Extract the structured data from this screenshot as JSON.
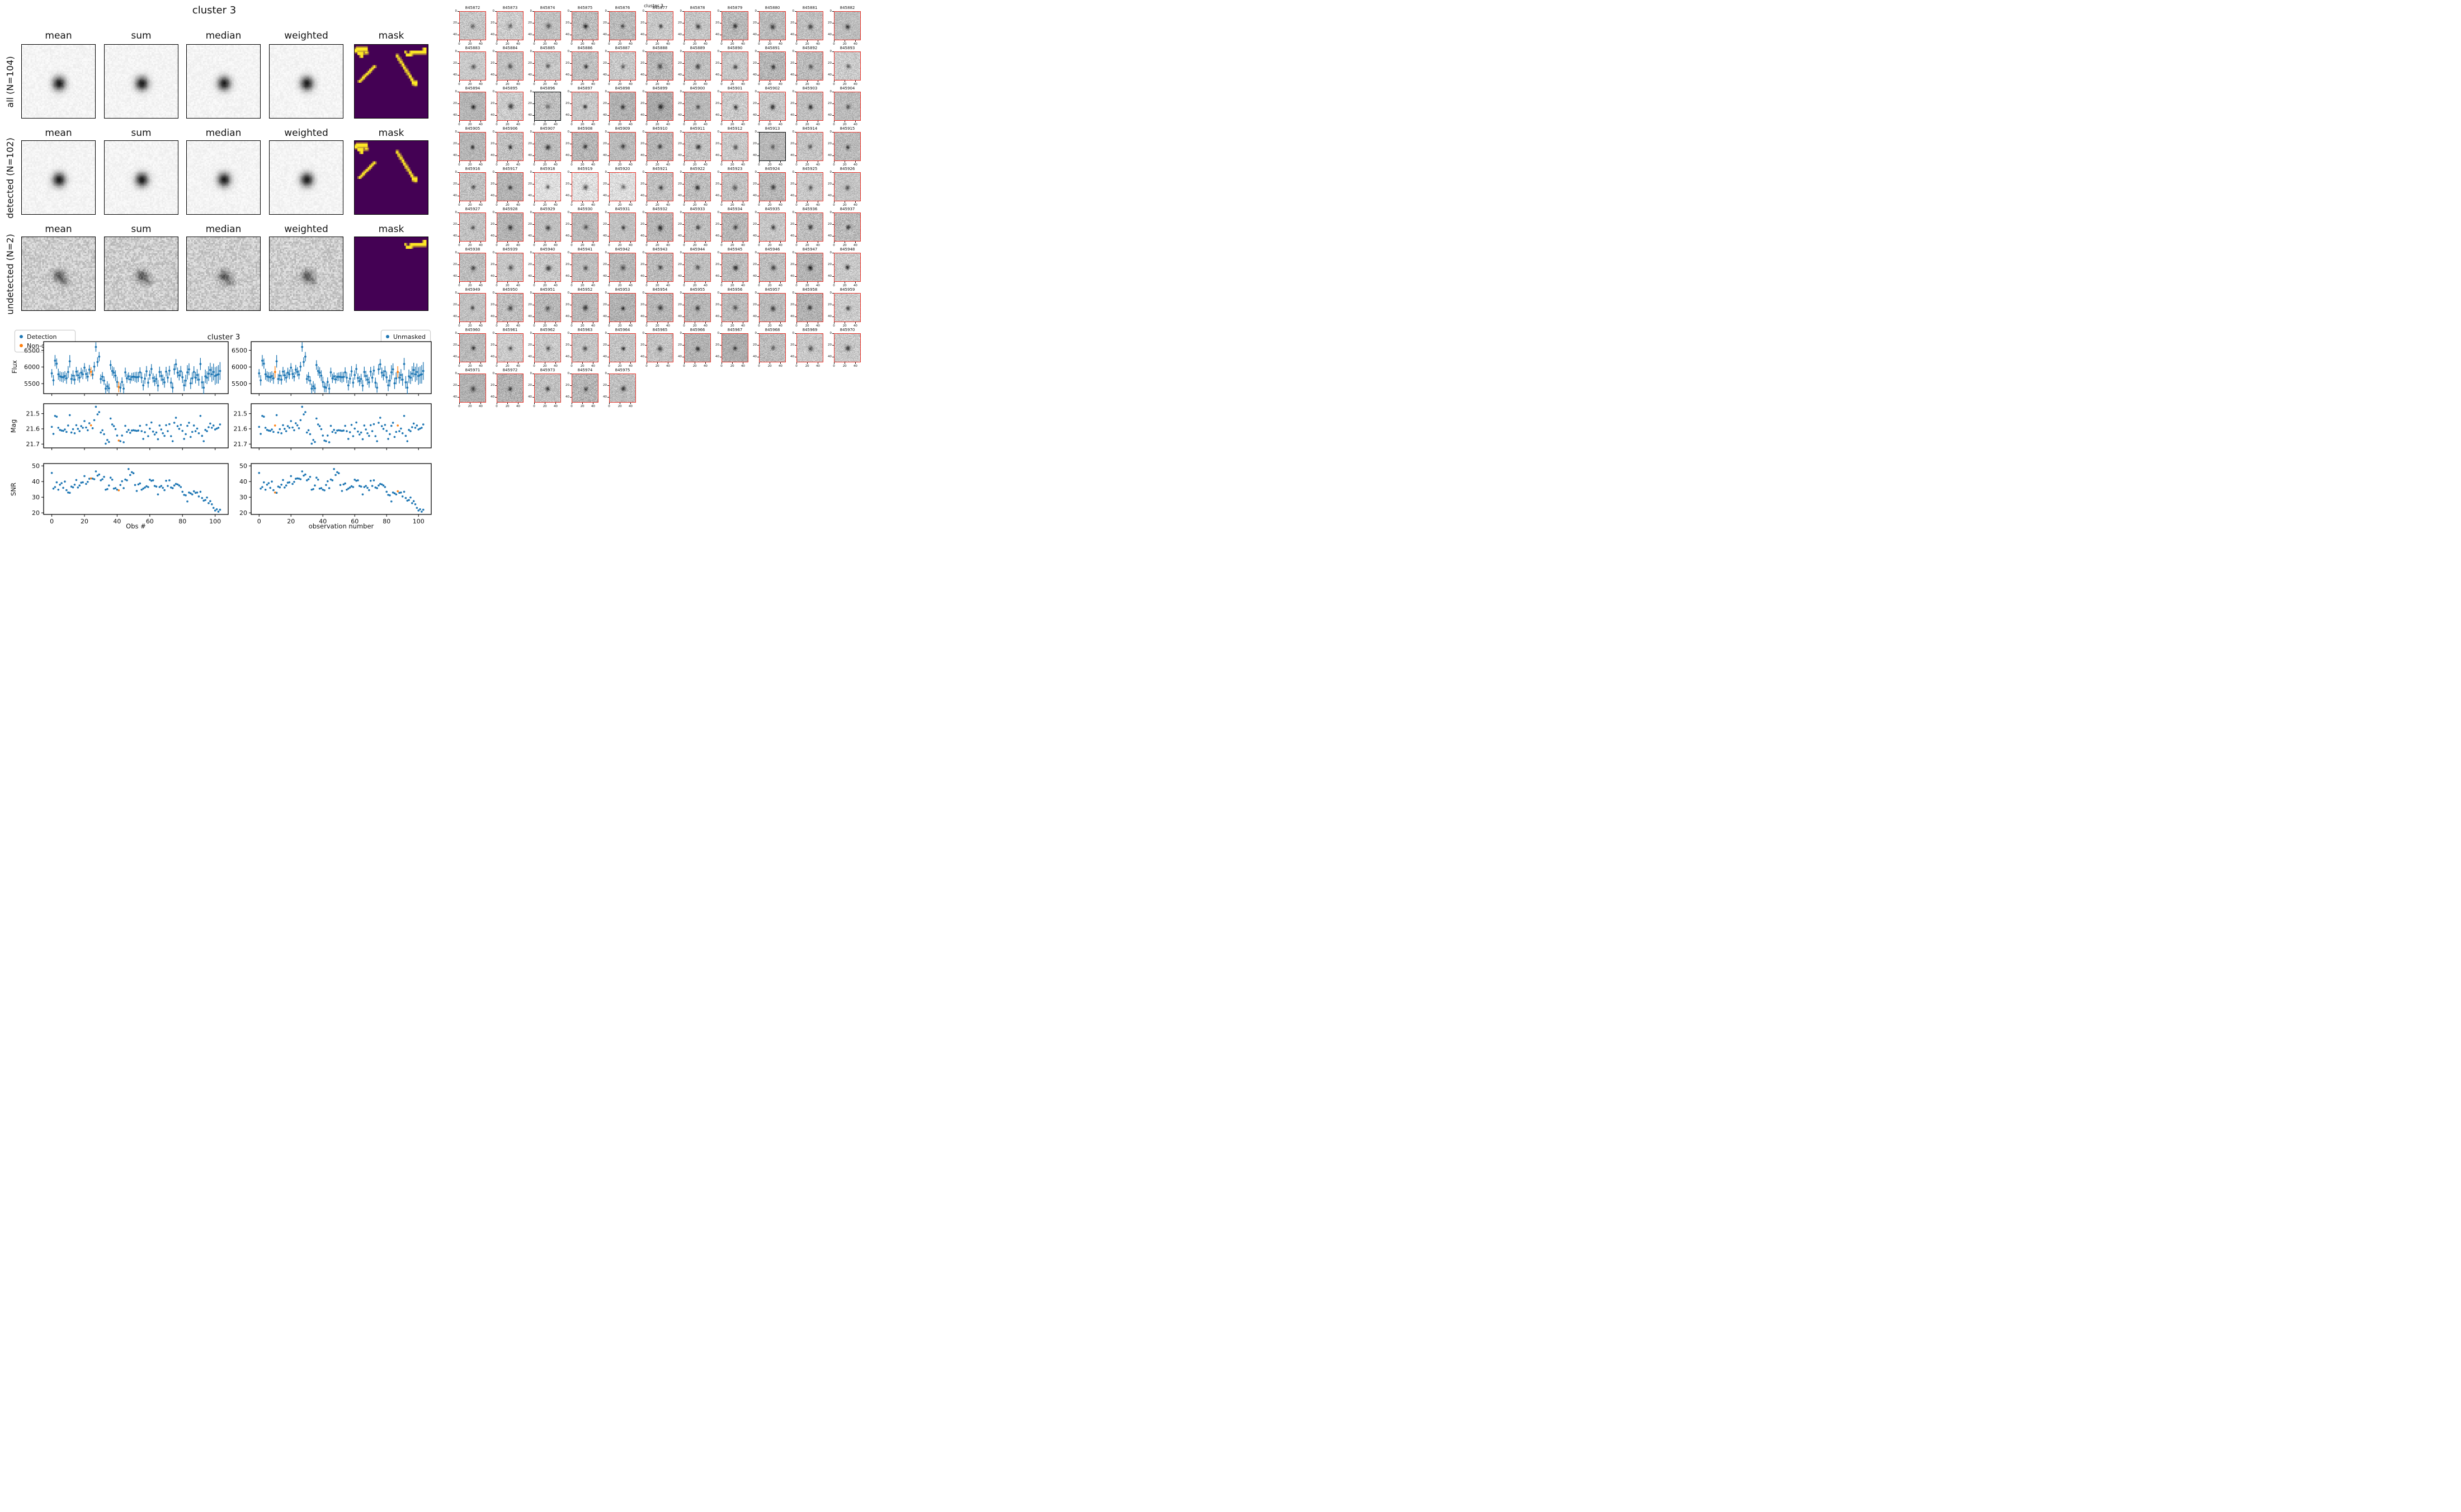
{
  "left_figure": {
    "title": "cluster 3",
    "col_headers": [
      "mean",
      "sum",
      "median",
      "weighted",
      "mask"
    ],
    "rows": [
      {
        "label": "all (N=104)",
        "mask_features": [
          "blob_tl",
          "streak_tr",
          "diag_l",
          "diag_r"
        ],
        "style": "smooth"
      },
      {
        "label": "detected (N=102)",
        "mask_features": [
          "blob_tl",
          "diag_l",
          "diag_r"
        ],
        "style": "smooth"
      },
      {
        "label": "undetected (N=2)",
        "mask_features": [
          "streak_tr"
        ],
        "style": "noisy"
      }
    ],
    "mask_colors": {
      "background": "#440154",
      "feature": "#fde725"
    },
    "mask_shapes": {
      "blob_tl": [
        [
          2,
          3,
          16,
          6
        ],
        [
          4,
          9,
          9,
          5
        ],
        [
          7,
          14,
          5,
          4
        ],
        [
          14,
          9,
          5,
          4
        ],
        [
          0,
          5,
          4,
          6
        ]
      ],
      "streak_tr": [
        [
          75,
          8,
          23,
          5
        ],
        [
          70,
          12,
          9,
          4
        ],
        [
          68,
          8,
          3,
          4
        ],
        [
          93,
          4,
          5,
          5
        ]
      ],
      "diag_l": [
        [
          5,
          48,
          4,
          4
        ],
        [
          7.5,
          45.5,
          4,
          4
        ],
        [
          10,
          43,
          4,
          4
        ],
        [
          12.5,
          40.5,
          4,
          4
        ],
        [
          15,
          38,
          4,
          4
        ],
        [
          17.5,
          35.5,
          4,
          4
        ],
        [
          20,
          33,
          4,
          4
        ],
        [
          22.5,
          30.5,
          4,
          4
        ],
        [
          25,
          28,
          4,
          4
        ]
      ],
      "diag_r": [
        [
          56,
          13,
          4.5,
          4.5
        ],
        [
          58.5,
          17,
          4.5,
          4.5
        ],
        [
          61,
          21,
          4.5,
          4.5
        ],
        [
          63.5,
          25,
          4.5,
          4.5
        ],
        [
          66,
          29,
          4.5,
          4.5
        ],
        [
          68.5,
          33,
          4.5,
          4.5
        ],
        [
          71,
          37,
          4.5,
          4.5
        ],
        [
          73.5,
          41,
          4.5,
          4.5
        ],
        [
          76,
          45,
          4.5,
          4.5
        ],
        [
          78,
          49,
          8,
          6
        ],
        [
          81,
          52,
          4.5,
          4.5
        ]
      ]
    }
  },
  "timeseries_figure": {
    "title": "cluster 3",
    "legend_left": {
      "items": [
        {
          "label": "Detection",
          "color": "#1f77b4"
        },
        {
          "label": "Non-detection",
          "color": "#ff7f0e"
        }
      ]
    },
    "legend_right": {
      "items": [
        {
          "label": "Unmasked",
          "color": "#1f77b4"
        },
        {
          "label": "Masked",
          "color": "#ff7f0e"
        }
      ]
    },
    "columns": [
      {
        "xlabel": "Obs #",
        "highlight": "non_detection_obs"
      },
      {
        "xlabel": "observation number",
        "highlight": "masked_obs"
      }
    ]
  },
  "chart_data": {
    "type": "scatter",
    "title": "cluster 3",
    "xlim": [
      -5,
      108
    ],
    "xticks": [
      0,
      20,
      40,
      60,
      80,
      100
    ],
    "obs": [
      0,
      1,
      2,
      3,
      4,
      5,
      6,
      7,
      8,
      9,
      10,
      11,
      12,
      13,
      14,
      15,
      16,
      17,
      18,
      19,
      20,
      21,
      22,
      23,
      24,
      25,
      26,
      27,
      28,
      29,
      30,
      31,
      32,
      33,
      34,
      35,
      36,
      37,
      38,
      39,
      40,
      41,
      42,
      43,
      44,
      45,
      46,
      47,
      48,
      49,
      50,
      51,
      52,
      53,
      54,
      55,
      56,
      57,
      58,
      59,
      60,
      61,
      62,
      63,
      64,
      65,
      66,
      67,
      68,
      69,
      70,
      71,
      72,
      73,
      74,
      75,
      76,
      77,
      78,
      79,
      80,
      81,
      82,
      83,
      84,
      85,
      86,
      87,
      88,
      89,
      90,
      91,
      92,
      93,
      94,
      95,
      96,
      97,
      98,
      99,
      100,
      101,
      102,
      103
    ],
    "non_detection_obs": [
      24,
      41
    ],
    "masked_obs": [
      10,
      87
    ],
    "colors": {
      "detection": "#1f77b4",
      "non_detection": "#ff7f0e"
    },
    "panels": [
      {
        "ylabel": "Flux",
        "style": "errorbar",
        "ylim": [
          5200,
          6760
        ],
        "yticks": [
          5500,
          6000,
          6500
        ]
      },
      {
        "ylabel": "Mag",
        "style": "scatter",
        "ylim": [
          21.725,
          21.435
        ],
        "yticks": [
          21.5,
          21.6,
          21.7
        ]
      },
      {
        "ylabel": "SNR",
        "style": "scatter",
        "ylim": [
          19,
          51.5
        ],
        "yticks": [
          20,
          30,
          40,
          50
        ]
      }
    ],
    "flux": [
      5810,
      5600,
      6190,
      6100,
      5780,
      5720,
      5700,
      5690,
      5730,
      5660,
      5850,
      6170,
      5640,
      5740,
      5620,
      5860,
      5750,
      5680,
      5830,
      5780,
      5980,
      5790,
      5710,
      5920,
      5855,
      5770,
      6010,
      6600,
      6150,
      6310,
      5640,
      5710,
      5590,
      5350,
      5420,
      5360,
      6060,
      5880,
      5830,
      5740,
      5550,
      5400,
      5380,
      5550,
      5350,
      5840,
      5660,
      5720,
      5630,
      5700,
      5710,
      5700,
      5690,
      5700,
      5840,
      5680,
      5450,
      5650,
      5870,
      5530,
      5760,
      5940,
      5670,
      5580,
      5640,
      5440,
      5850,
      5730,
      5620,
      5540,
      5860,
      5680,
      5890,
      5530,
      5380,
      5930,
      6080,
      5830,
      5750,
      5870,
      5690,
      5450,
      5590,
      5840,
      5930,
      5510,
      5660,
      5850,
      5680,
      5760,
      5620,
      6090,
      5540,
      5380,
      5720,
      5680,
      5800,
      5910,
      5780,
      5850,
      5730,
      5760,
      5780,
      5880
    ],
    "flux_err": [
      128,
      158,
      170,
      154,
      166,
      151,
      146,
      158,
      143,
      164,
      177,
      188,
      153,
      158,
      148,
      143,
      159,
      151,
      148,
      146,
      137,
      150,
      143,
      142,
      139,
      138,
      145,
      142,
      140,
      142,
      138,
      138,
      130,
      154,
      154,
      143,
      143,
      143,
      164,
      160,
      159,
      157,
      142,
      138,
      149,
      141,
      139,
      119,
      127,
      124,
      126,
      151,
      167,
      149,
      151,
      163,
      154,
      156,
      159,
      151,
      140,
      147,
      139,
      150,
      153,
      171,
      160,
      154,
      156,
      161,
      145,
      153,
      144,
      153,
      150,
      158,
      158,
      153,
      153,
      161,
      170,
      173,
      179,
      214,
      180,
      170,
      178,
      173,
      173,
      175,
      184,
      182,
      188,
      193,
      203,
      191,
      221,
      215,
      227,
      252,
      266,
      258,
      278,
      267
    ],
    "mag": [
      21.587,
      21.633,
      21.515,
      21.52,
      21.593,
      21.607,
      21.611,
      21.613,
      21.604,
      21.62,
      21.578,
      21.51,
      21.624,
      21.602,
      21.629,
      21.576,
      21.6,
      21.615,
      21.582,
      21.593,
      21.549,
      21.591,
      21.609,
      21.563,
      21.577,
      21.596,
      21.543,
      21.455,
      21.505,
      21.49,
      21.624,
      21.609,
      21.635,
      21.697,
      21.673,
      21.686,
      21.532,
      21.571,
      21.582,
      21.602,
      21.644,
      21.677,
      21.681,
      21.644,
      21.688,
      21.58,
      21.62,
      21.607,
      21.626,
      21.611,
      21.609,
      21.611,
      21.613,
      21.611,
      21.58,
      21.615,
      21.666,
      21.622,
      21.574,
      21.648,
      21.598,
      21.558,
      21.618,
      21.637,
      21.624,
      21.668,
      21.578,
      21.604,
      21.629,
      21.646,
      21.576,
      21.615,
      21.569,
      21.648,
      21.681,
      21.56,
      21.527,
      21.582,
      21.6,
      21.574,
      21.613,
      21.666,
      21.635,
      21.58,
      21.56,
      21.653,
      21.62,
      21.578,
      21.615,
      21.598,
      21.629,
      21.515,
      21.646,
      21.681,
      21.607,
      21.615,
      21.589,
      21.565,
      21.593,
      21.578,
      21.604,
      21.598,
      21.593,
      21.571
    ],
    "snr": [
      45.5,
      35.5,
      36.5,
      39.5,
      34.8,
      38.0,
      39.0,
      36.0,
      40.0,
      34.5,
      33.0,
      32.8,
      36.8,
      36.3,
      38.0,
      41.0,
      36.2,
      37.5,
      39.3,
      39.5,
      43.5,
      38.5,
      39.8,
      41.8,
      42.0,
      41.9,
      41.5,
      46.5,
      43.8,
      44.5,
      40.8,
      41.5,
      43.0,
      34.8,
      35.2,
      37.5,
      42.5,
      41.2,
      35.5,
      35.8,
      34.8,
      34.4,
      37.8,
      40.2,
      35.8,
      41.3,
      40.8,
      48.0,
      44.2,
      46.0,
      45.3,
      37.8,
      34.0,
      38.2,
      38.8,
      34.8,
      35.5,
      36.2,
      37.0,
      36.5,
      41.2,
      40.5,
      40.8,
      37.2,
      36.8,
      31.8,
      36.5,
      37.2,
      36.0,
      34.5,
      40.5,
      37.2,
      40.8,
      36.2,
      35.8,
      37.5,
      38.5,
      38.2,
      37.5,
      36.5,
      33.5,
      31.5,
      31.2,
      27.3,
      33.0,
      32.5,
      31.8,
      33.8,
      32.8,
      33.0,
      30.5,
      33.5,
      29.5,
      27.8,
      28.2,
      29.8,
      26.2,
      27.5,
      25.5,
      23.2,
      21.5,
      22.3,
      20.8,
      22.0
    ]
  },
  "cutouts": {
    "suptitle": "cluster 3",
    "columns": 11,
    "xticks": [
      0,
      20,
      40
    ],
    "yticks": [
      0,
      20,
      40
    ],
    "border_color": "#e8332a",
    "undetected_border_color": "#000000",
    "undetected_ids": [
      845896,
      845913
    ],
    "ids": [
      845872,
      845873,
      845874,
      845875,
      845876,
      845877,
      845878,
      845879,
      845880,
      845881,
      845882,
      845883,
      845884,
      845885,
      845886,
      845887,
      845888,
      845889,
      845890,
      845891,
      845892,
      845893,
      845894,
      845895,
      845896,
      845897,
      845898,
      845899,
      845900,
      845901,
      845902,
      845903,
      845904,
      845905,
      845906,
      845907,
      845908,
      845909,
      845910,
      845911,
      845912,
      845913,
      845914,
      845915,
      845916,
      845917,
      845918,
      845919,
      845920,
      845921,
      845922,
      845923,
      845924,
      845925,
      845926,
      845927,
      845928,
      845929,
      845930,
      845931,
      845932,
      845933,
      845934,
      845935,
      845936,
      845937,
      845938,
      845939,
      845940,
      845941,
      845942,
      845943,
      845944,
      845945,
      845946,
      845947,
      845948,
      845949,
      845950,
      845951,
      845952,
      845953,
      845954,
      845955,
      845956,
      845957,
      845958,
      845959,
      845960,
      845961,
      845962,
      845963,
      845964,
      845965,
      845966,
      845967,
      845968,
      845969,
      845970,
      845971,
      845972,
      845973,
      845974,
      845975
    ]
  }
}
